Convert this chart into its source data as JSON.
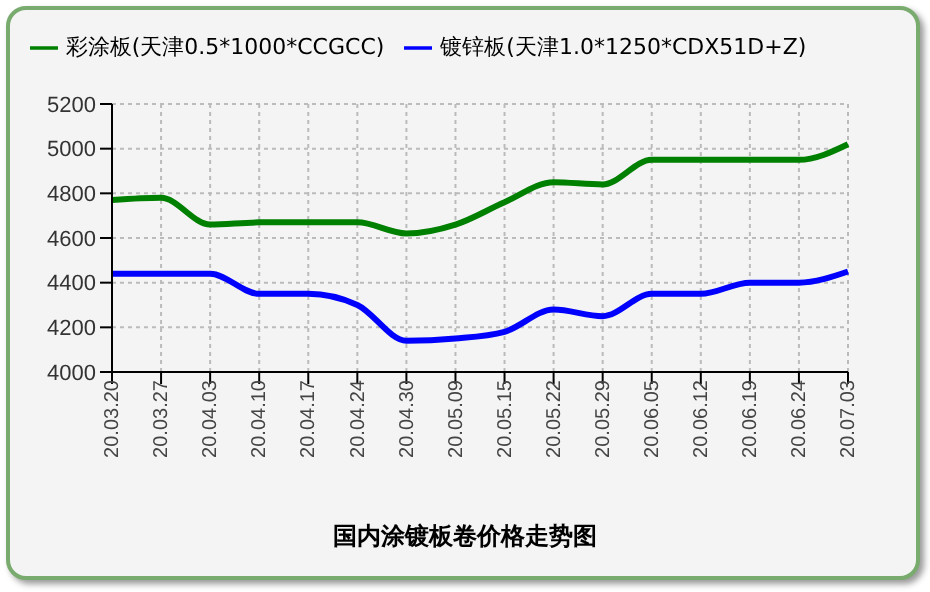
{
  "chart_data": {
    "type": "line",
    "title": "国内涂镀板卷价格走势图",
    "categories": [
      "20.03.20",
      "20.03.27",
      "20.04.03",
      "20.04.10",
      "20.04.17",
      "20.04.24",
      "20.04.30",
      "20.05.09",
      "20.05.15",
      "20.05.22",
      "20.05.29",
      "20.06.05",
      "20.06.12",
      "20.06.19",
      "20.06.24",
      "20.07.03"
    ],
    "series": [
      {
        "name": "彩涂板(天津0.5*1000*CCGCC)",
        "color": "#008000",
        "values": [
          4770,
          4780,
          4660,
          4670,
          4670,
          4670,
          4620,
          4660,
          4760,
          4850,
          4840,
          4950,
          4950,
          4950,
          4950,
          5020
        ]
      },
      {
        "name": "镀锌板(天津1.0*1250*CDX51D+Z)",
        "color": "#0000ff",
        "values": [
          4440,
          4440,
          4440,
          4350,
          4350,
          4300,
          4140,
          4150,
          4180,
          4280,
          4250,
          4350,
          4350,
          4400,
          4400,
          4450
        ]
      }
    ],
    "ylim": [
      4000,
      5200
    ],
    "yticks": [
      4000,
      4200,
      4400,
      4600,
      4800,
      5000,
      5200
    ],
    "grid": true,
    "legend": "top",
    "marker": "none",
    "line_style": "solid"
  }
}
